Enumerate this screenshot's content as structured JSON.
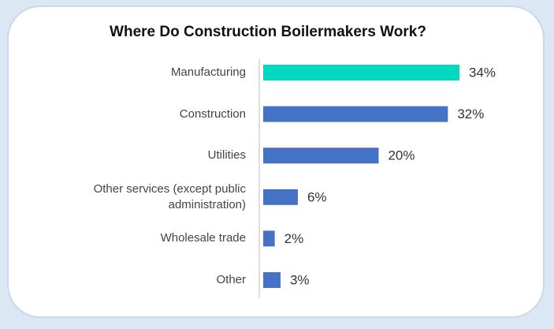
{
  "chart_data": {
    "type": "hbar",
    "title": "Where Do Construction Boilermakers Work?",
    "categories": [
      "Manufacturing",
      "Construction",
      "Utilities",
      "Other services (except public administration)",
      "Wholesale trade",
      "Other"
    ],
    "values": [
      34,
      32,
      20,
      6,
      2,
      3
    ],
    "value_labels": [
      "34%",
      "32%",
      "20%",
      "6%",
      "2%",
      "3%"
    ],
    "colors": [
      "#00d8c0",
      "#4472c4",
      "#4472c4",
      "#4472c4",
      "#4472c4",
      "#4472c4"
    ]
  }
}
